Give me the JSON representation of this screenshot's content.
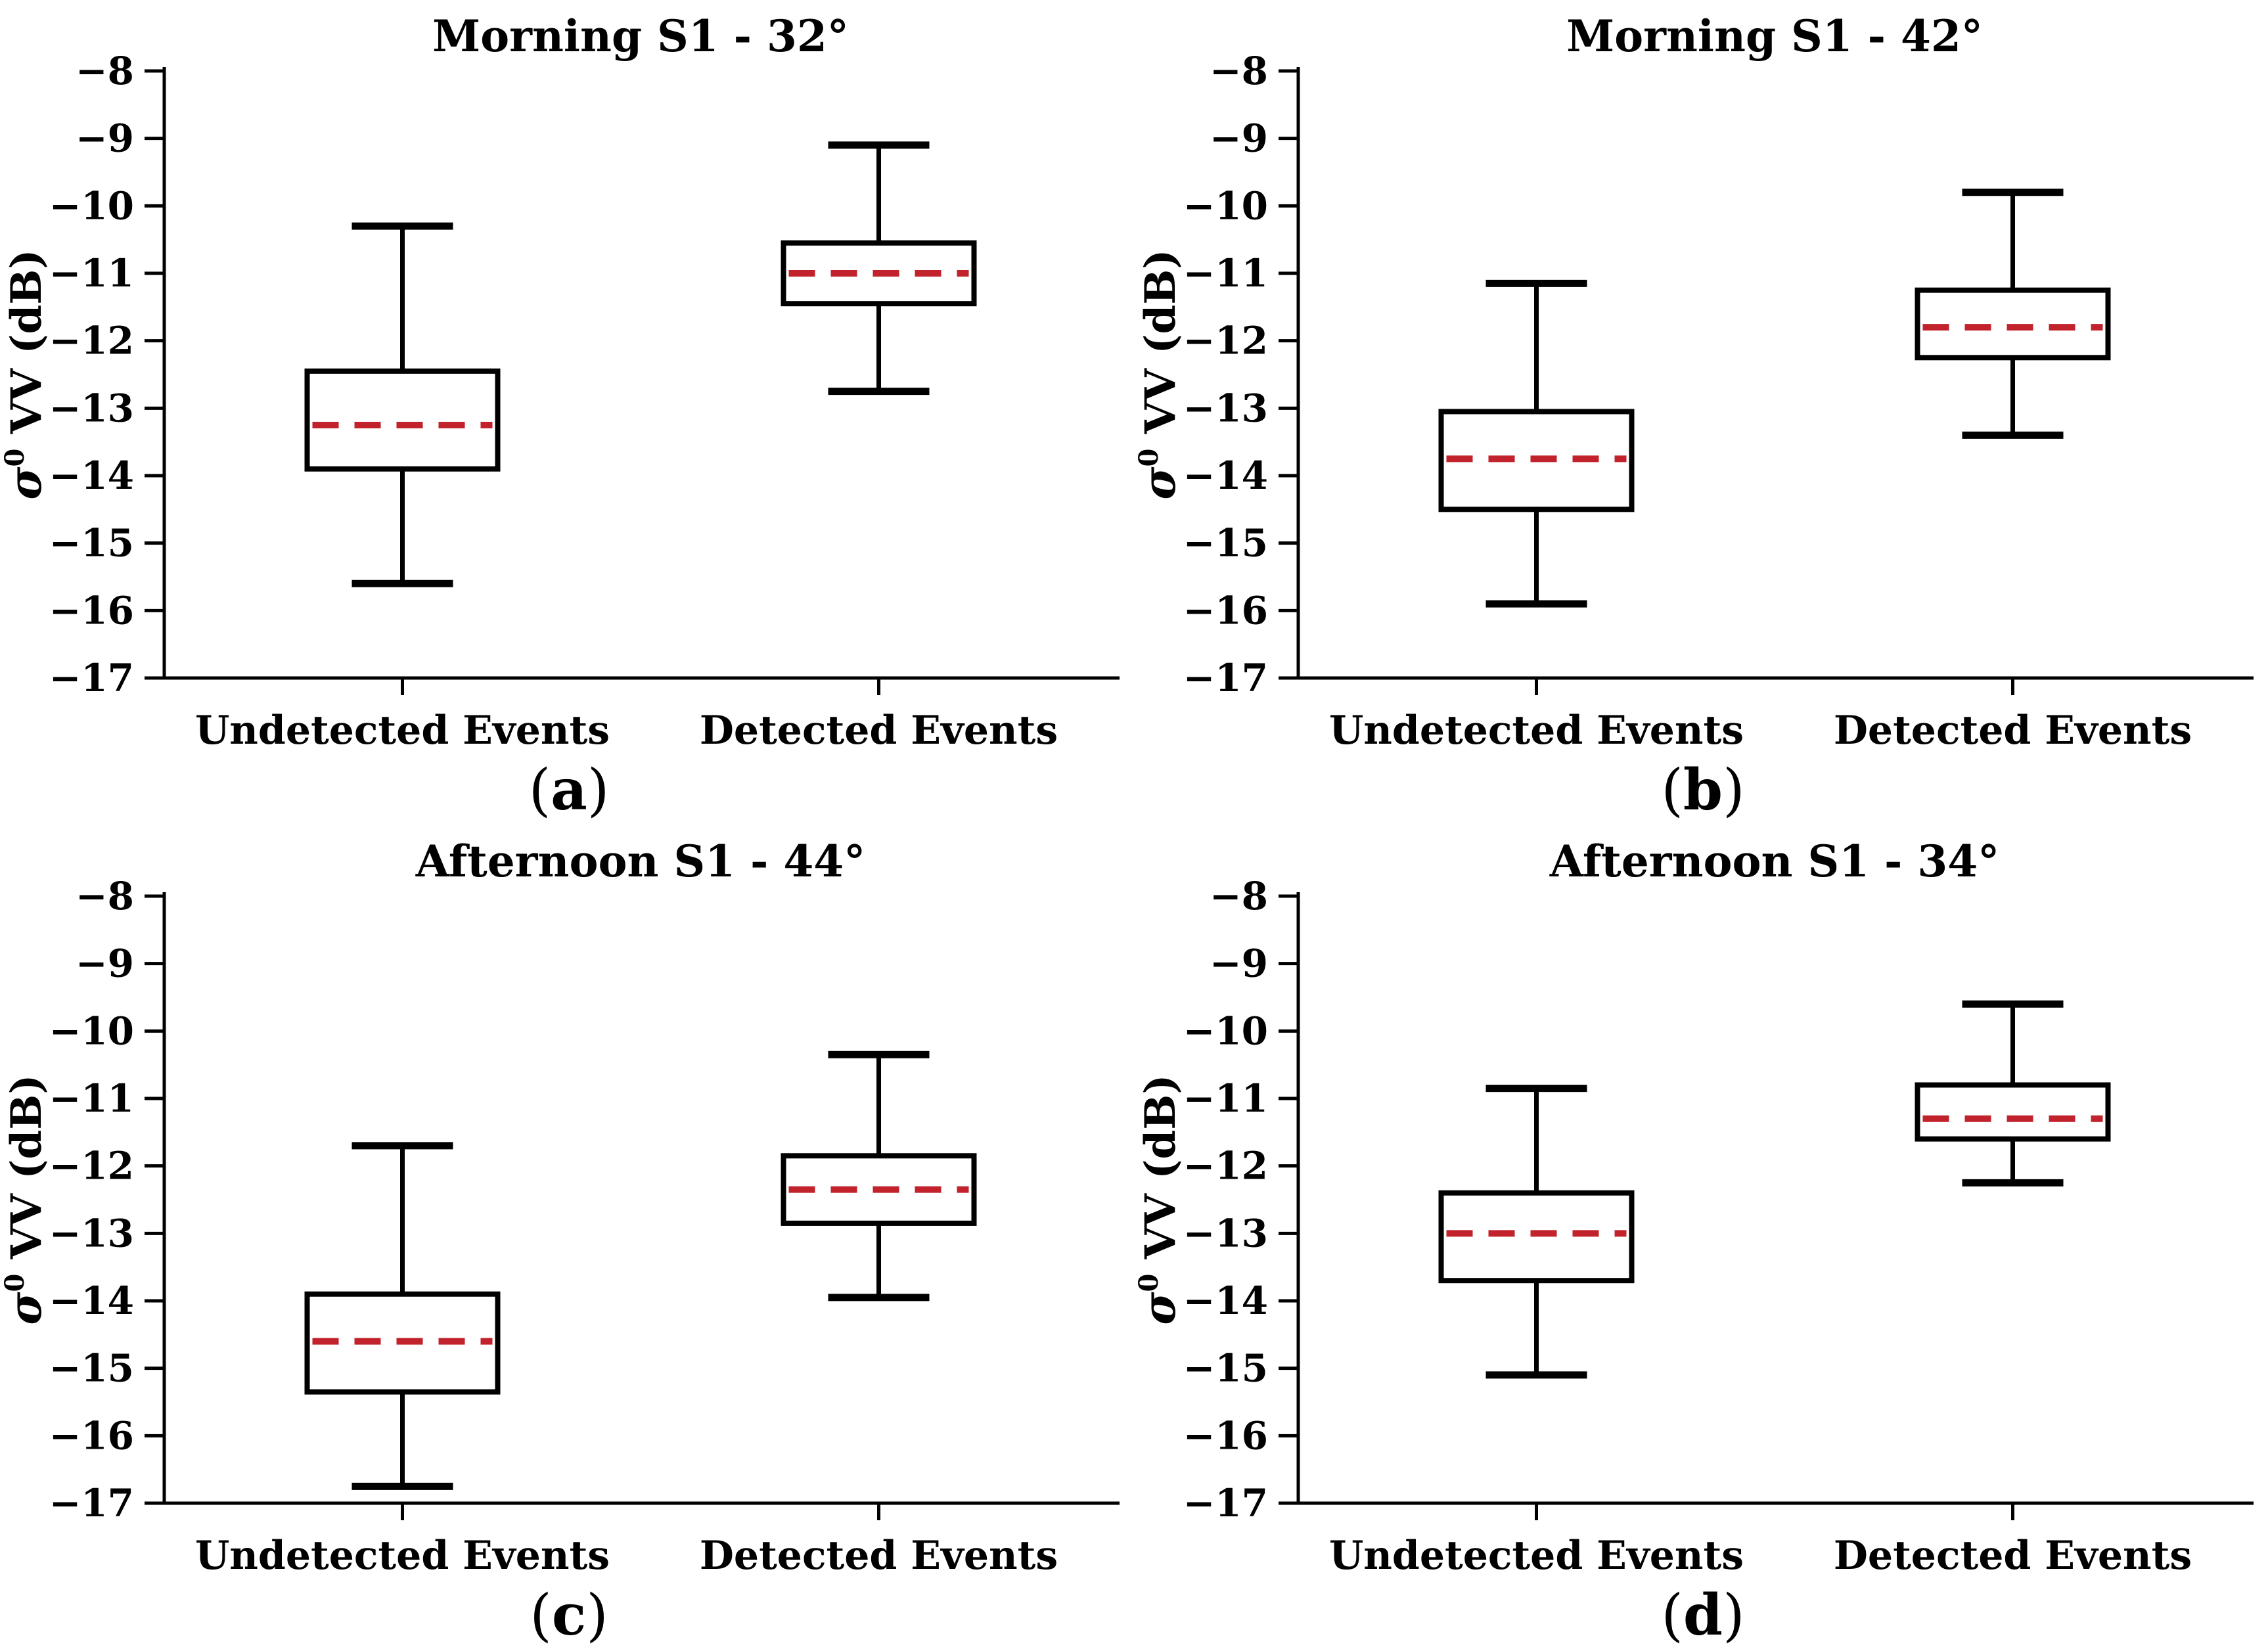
{
  "figure": {
    "caption_paren_open": "(",
    "caption_paren_close": ")",
    "axis": {
      "ylabel_sigma": "σ",
      "ylabel_sup": "0",
      "ylabel_rest": " VV (dB)",
      "ytick_labels": [
        "−8",
        "−9",
        "−10",
        "−11",
        "−12",
        "−13",
        "−14",
        "−15",
        "−16",
        "−17"
      ]
    },
    "style": {
      "line_color": "#000000",
      "median_color": "#c1222b",
      "box_fill": "#ffffff",
      "background": "#ffffff"
    }
  },
  "chart_data": [
    {
      "type": "boxplot",
      "panel": "a",
      "letter": "a",
      "title": "Morning S1 - 32°",
      "ylabel": "σ0 VV (dB)",
      "ylim": [
        -17,
        -8
      ],
      "yticks": [
        -8,
        -9,
        -10,
        -11,
        -12,
        -13,
        -14,
        -15,
        -16,
        -17
      ],
      "grid": false,
      "categories": [
        "Undetected Events",
        "Detected Events"
      ],
      "series": [
        {
          "category": "Undetected Events",
          "whisker_low": -15.6,
          "q1": -13.9,
          "median": -13.25,
          "q3": -12.45,
          "whisker_high": -10.3
        },
        {
          "category": "Detected Events",
          "whisker_low": -12.75,
          "q1": -11.45,
          "median": -11.0,
          "q3": -10.55,
          "whisker_high": -9.1
        }
      ]
    },
    {
      "type": "boxplot",
      "panel": "b",
      "letter": "b",
      "title": "Morning S1 - 42°",
      "ylabel": "σ0 VV (dB)",
      "ylim": [
        -17,
        -8
      ],
      "yticks": [
        -8,
        -9,
        -10,
        -11,
        -12,
        -13,
        -14,
        -15,
        -16,
        -17
      ],
      "grid": false,
      "categories": [
        "Undetected Events",
        "Detected Events"
      ],
      "series": [
        {
          "category": "Undetected Events",
          "whisker_low": -15.9,
          "q1": -14.5,
          "median": -13.75,
          "q3": -13.05,
          "whisker_high": -11.15
        },
        {
          "category": "Detected Events",
          "whisker_low": -13.4,
          "q1": -12.25,
          "median": -11.8,
          "q3": -11.25,
          "whisker_high": -9.8
        }
      ]
    },
    {
      "type": "boxplot",
      "panel": "c",
      "letter": "c",
      "title": "Afternoon S1 - 44°",
      "ylabel": "σ0 VV (dB)",
      "ylim": [
        -17,
        -8
      ],
      "yticks": [
        -8,
        -9,
        -10,
        -11,
        -12,
        -13,
        -14,
        -15,
        -16,
        -17
      ],
      "grid": false,
      "categories": [
        "Undetected Events",
        "Detected Events"
      ],
      "series": [
        {
          "category": "Undetected Events",
          "whisker_low": -16.75,
          "q1": -15.35,
          "median": -14.6,
          "q3": -13.9,
          "whisker_high": -11.7
        },
        {
          "category": "Detected Events",
          "whisker_low": -13.95,
          "q1": -12.85,
          "median": -12.35,
          "q3": -11.85,
          "whisker_high": -10.35
        }
      ]
    },
    {
      "type": "boxplot",
      "panel": "d",
      "letter": "d",
      "title": "Afternoon S1 - 34°",
      "ylabel": "σ0 VV (dB)",
      "ylim": [
        -17,
        -8
      ],
      "yticks": [
        -8,
        -9,
        -10,
        -11,
        -12,
        -13,
        -14,
        -15,
        -16,
        -17
      ],
      "grid": false,
      "categories": [
        "Undetected Events",
        "Detected Events"
      ],
      "series": [
        {
          "category": "Undetected Events",
          "whisker_low": -15.1,
          "q1": -13.7,
          "median": -13.0,
          "q3": -12.4,
          "whisker_high": -10.85
        },
        {
          "category": "Detected Events",
          "whisker_low": -12.25,
          "q1": -11.6,
          "median": -11.3,
          "q3": -10.8,
          "whisker_high": -9.6
        }
      ]
    }
  ]
}
